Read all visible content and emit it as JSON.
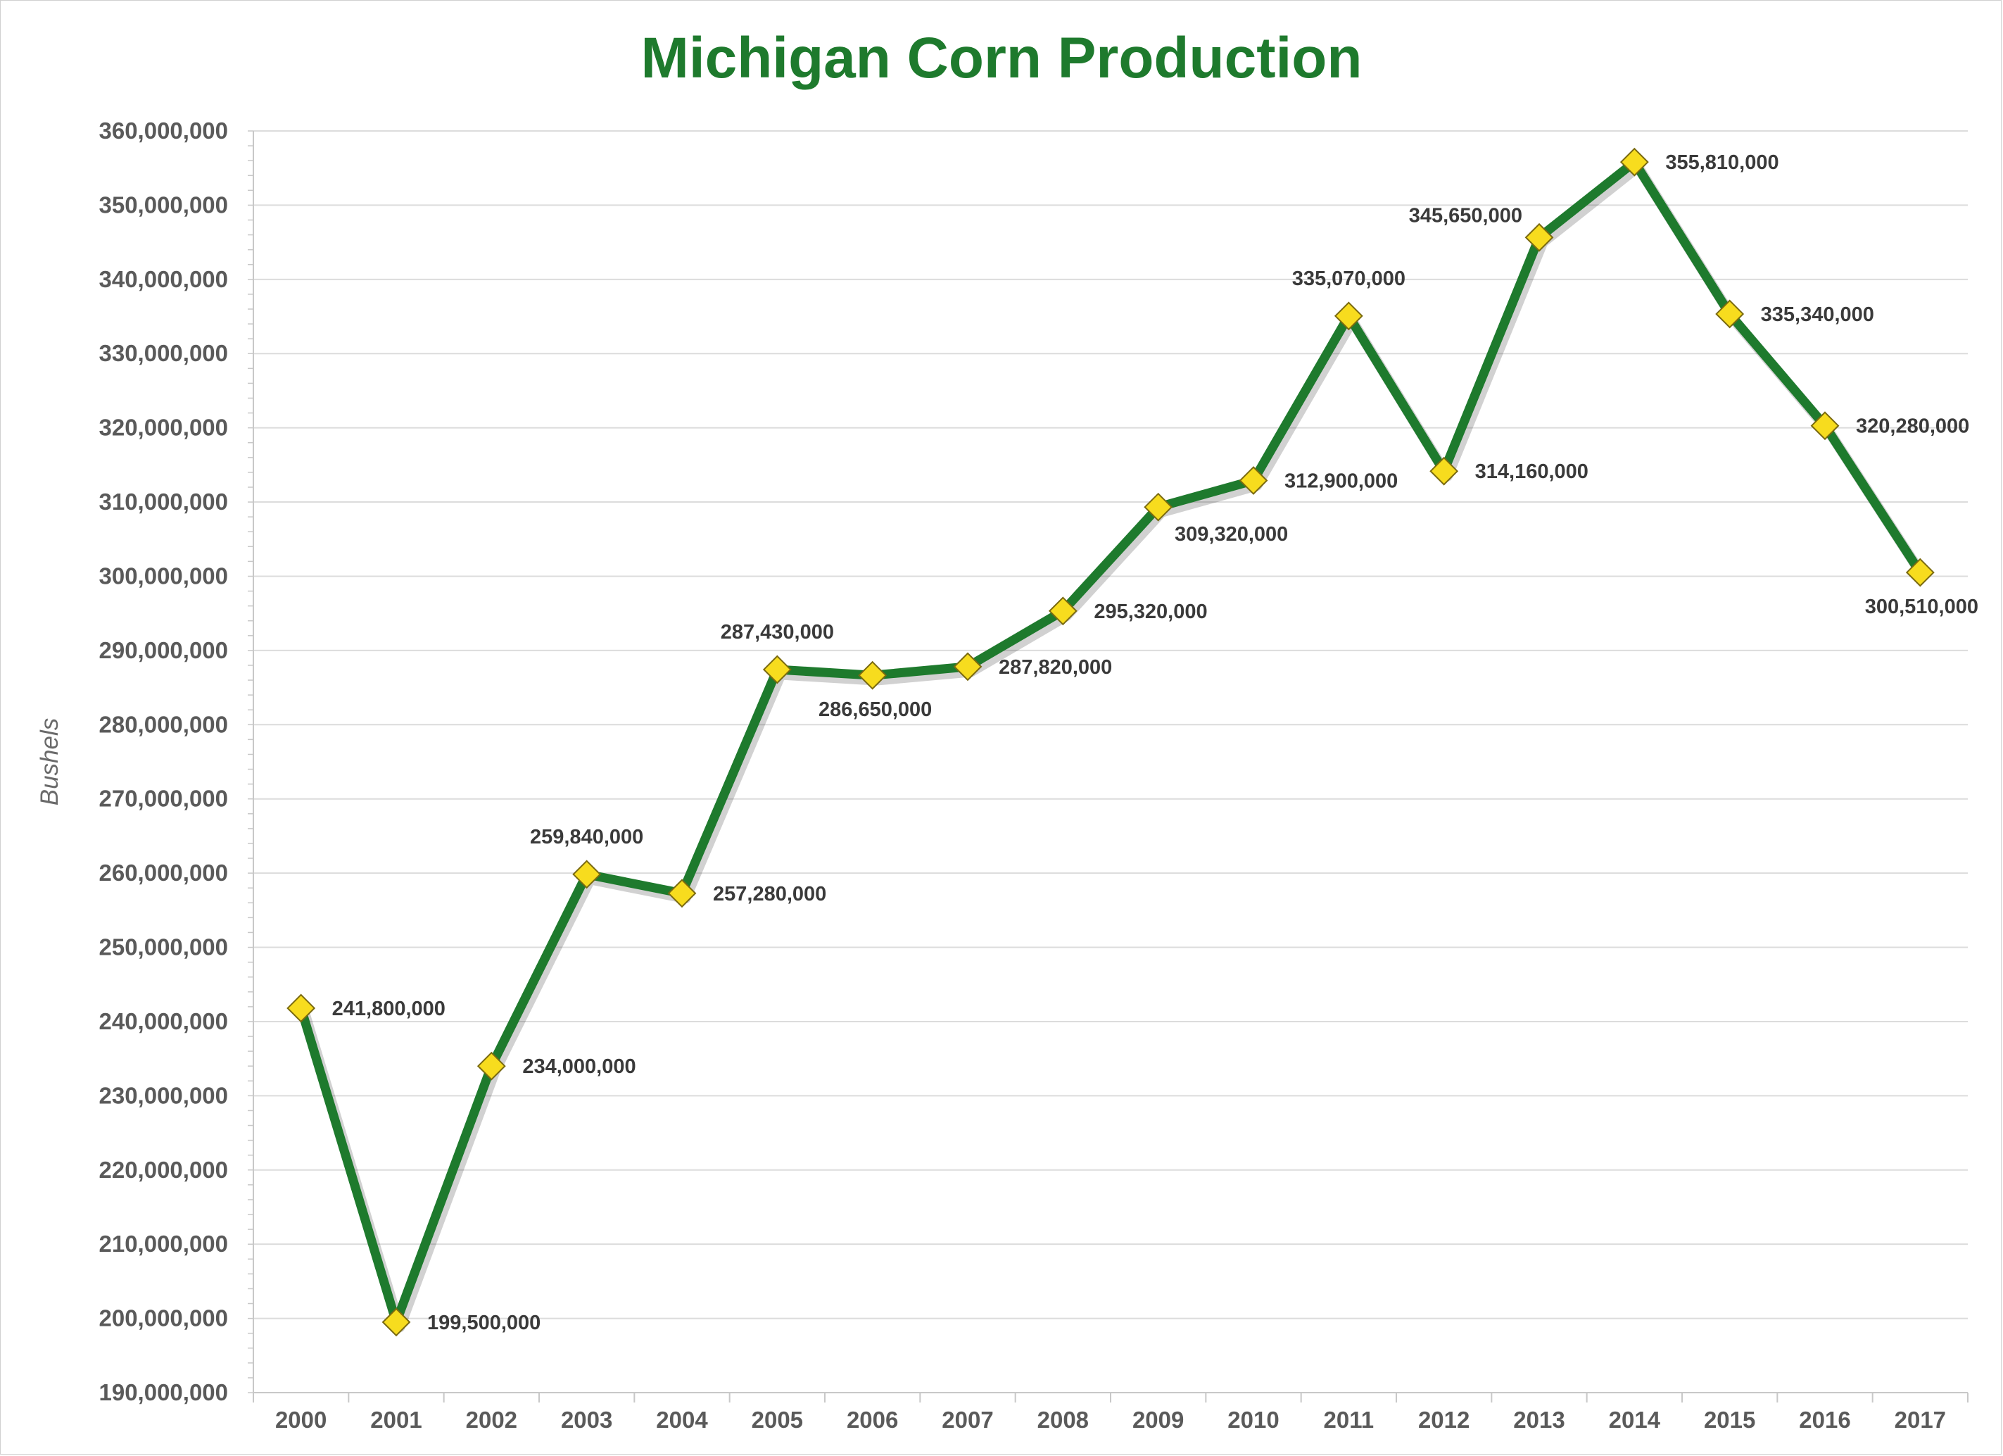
{
  "chart_data": {
    "type": "line",
    "title": "Michigan Corn Production",
    "xlabel": "",
    "ylabel": "Bushels",
    "categories": [
      "2000",
      "2001",
      "2002",
      "2003",
      "2004",
      "2005",
      "2006",
      "2007",
      "2008",
      "2009",
      "2010",
      "2011",
      "2012",
      "2013",
      "2014",
      "2015",
      "2016",
      "2017"
    ],
    "values": [
      241800000,
      199500000,
      234000000,
      259840000,
      257280000,
      287430000,
      286650000,
      287820000,
      295320000,
      309320000,
      312900000,
      335070000,
      314160000,
      345650000,
      355810000,
      335340000,
      320280000,
      300510000
    ],
    "data_labels": [
      "241,800,000",
      "199,500,000",
      "234,000,000",
      "259,840,000",
      "257,280,000",
      "287,430,000",
      "286,650,000",
      "287,820,000",
      "295,320,000",
      "309,320,000",
      "312,900,000",
      "335,070,000",
      "314,160,000",
      "345,650,000",
      "355,810,000",
      "335,340,000",
      "320,280,000",
      "300,510,000"
    ],
    "ylim": [
      190000000,
      360000000
    ],
    "y_ticks": [
      190000000,
      200000000,
      210000000,
      220000000,
      230000000,
      240000000,
      250000000,
      260000000,
      270000000,
      280000000,
      290000000,
      300000000,
      310000000,
      320000000,
      330000000,
      340000000,
      350000000,
      360000000
    ],
    "y_tick_labels": [
      "190,000,000",
      "200,000,000",
      "210,000,000",
      "220,000,000",
      "230,000,000",
      "240,000,000",
      "250,000,000",
      "260,000,000",
      "270,000,000",
      "280,000,000",
      "290,000,000",
      "300,000,000",
      "310,000,000",
      "320,000,000",
      "330,000,000",
      "340,000,000",
      "350,000,000",
      "360,000,000"
    ],
    "grid": true,
    "legend": "none",
    "colors": {
      "line": "#1e7a2d",
      "marker_fill": "#f7dc1e",
      "marker_stroke": "#7a6a10",
      "title": "#1e7a2d",
      "grid": "#dcdcdc"
    }
  }
}
